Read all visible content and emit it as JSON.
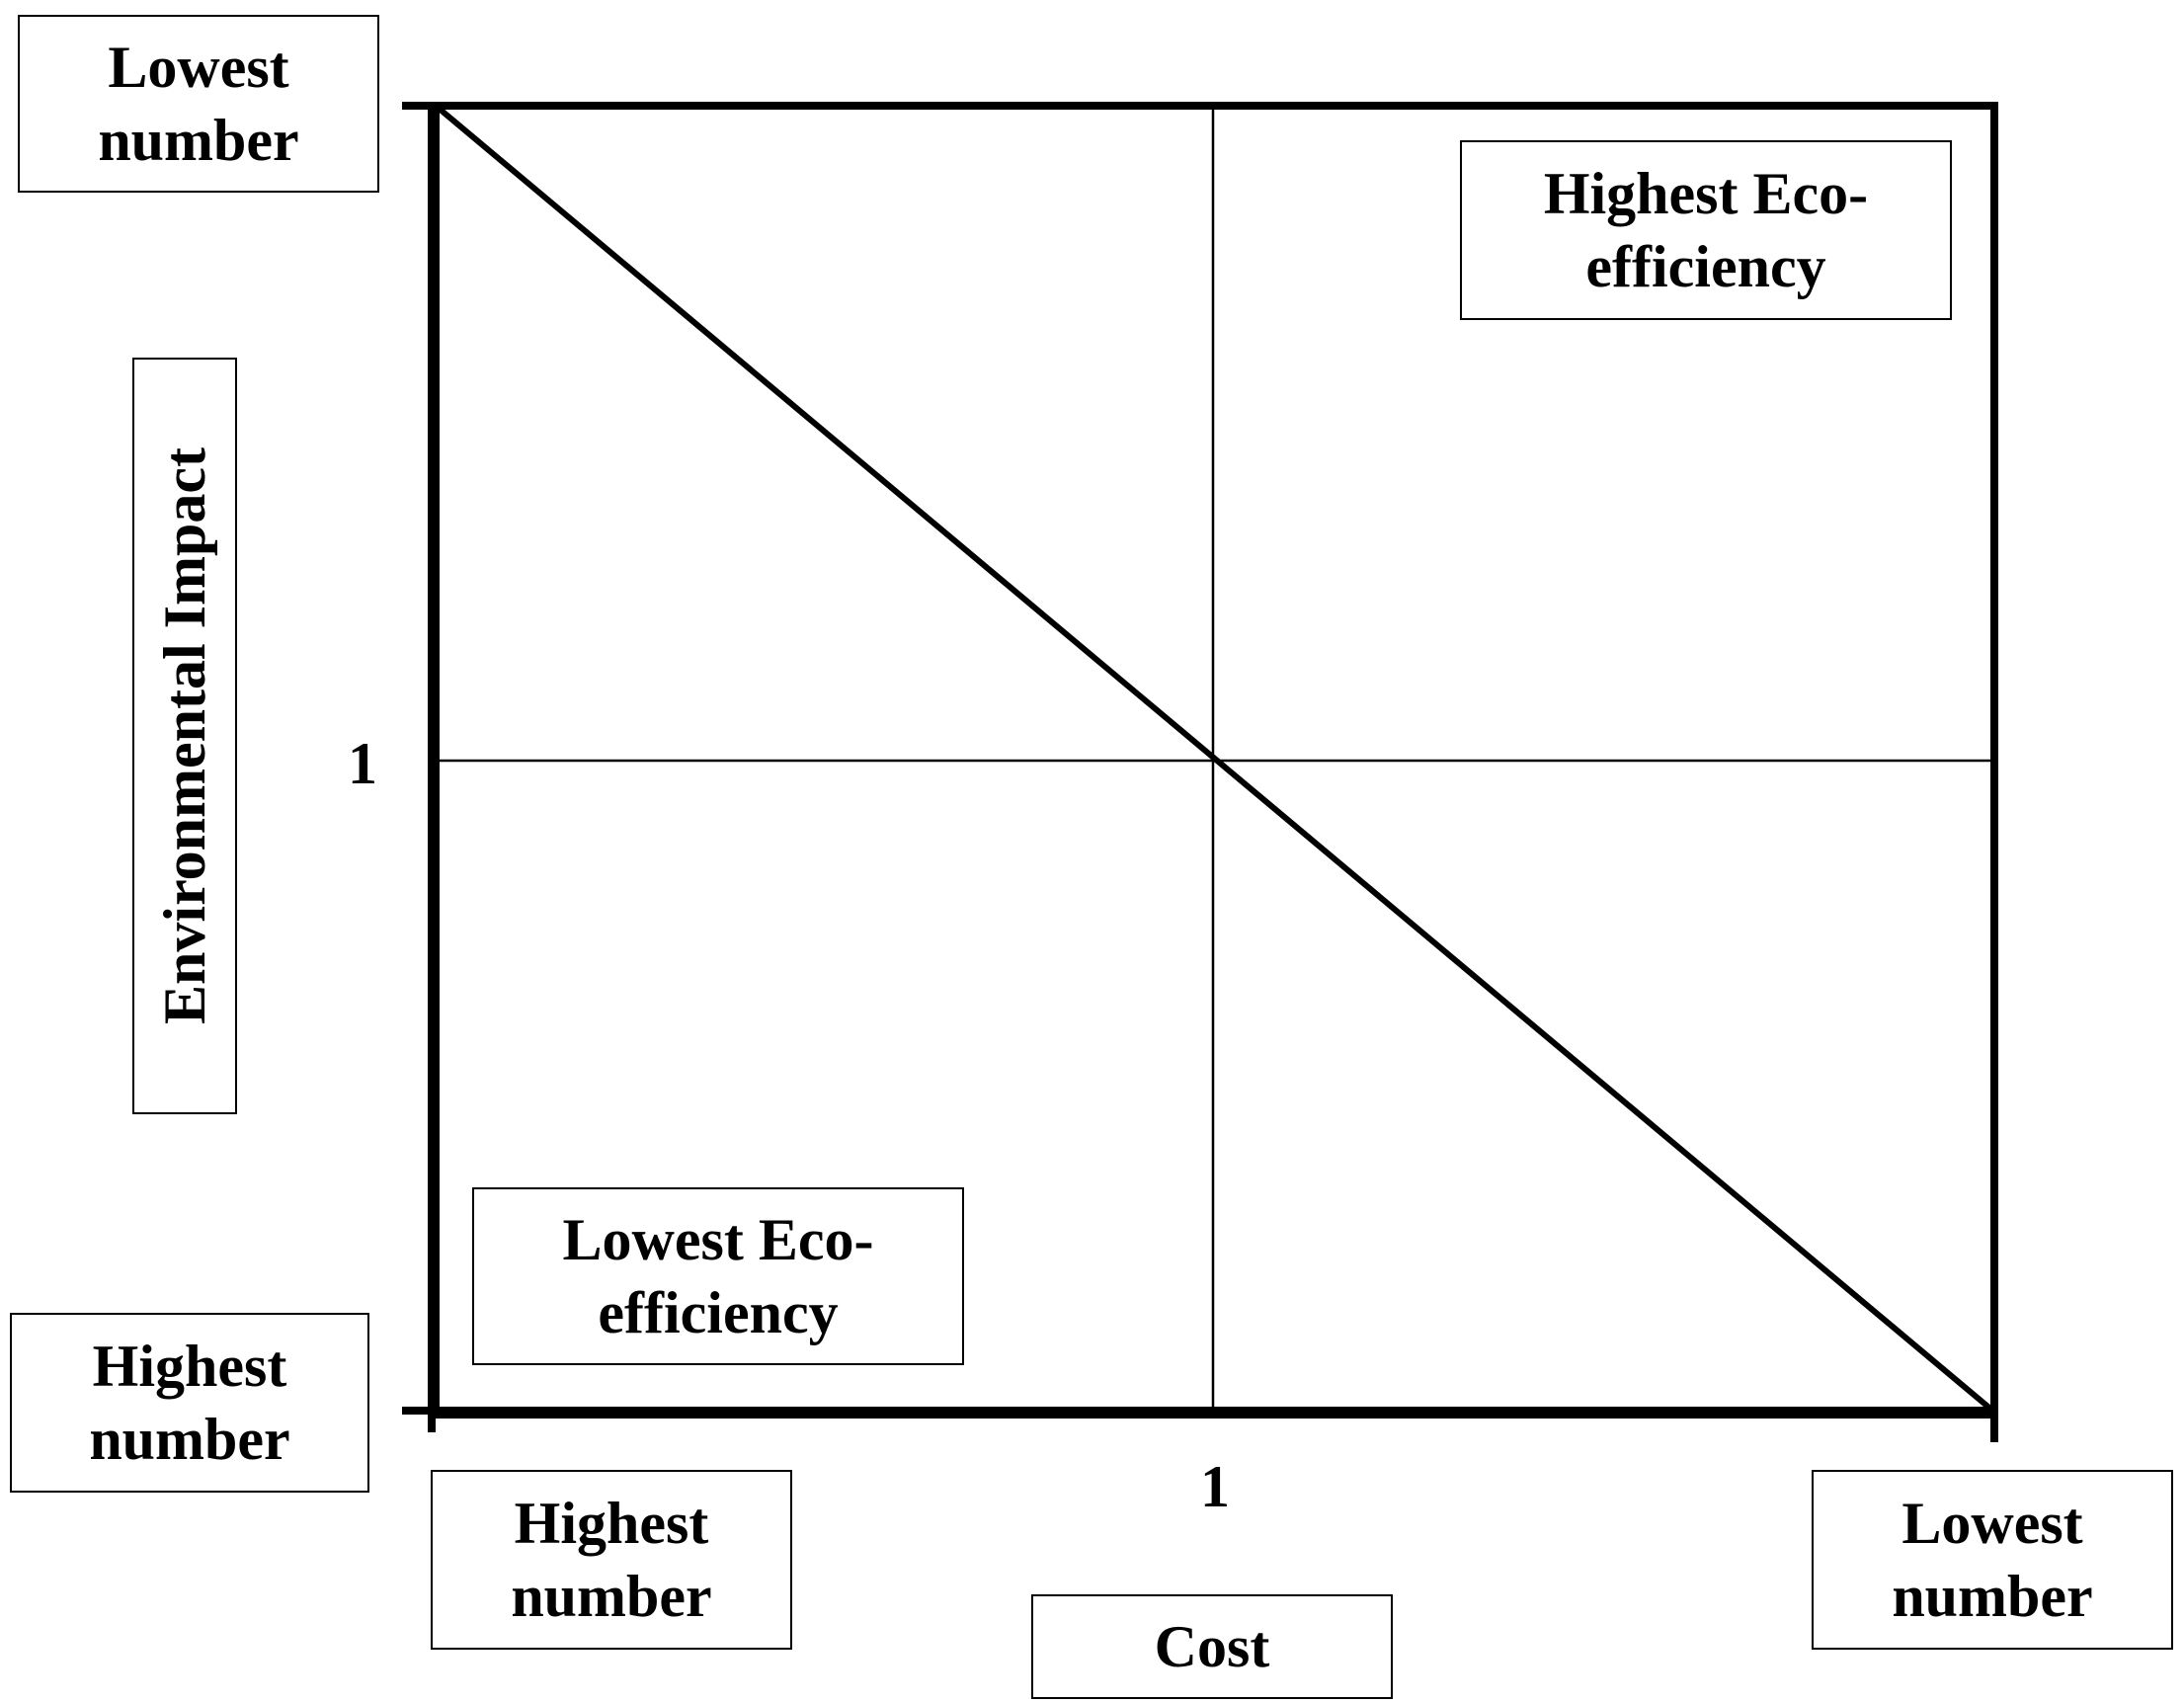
{
  "y_axis": {
    "title": "Environmental Impact",
    "top_label": [
      "Lowest",
      "number"
    ],
    "bottom_label": [
      "Highest",
      "number"
    ],
    "mid_tick": "1"
  },
  "x_axis": {
    "title": "Cost",
    "left_label": [
      "Highest",
      "number"
    ],
    "right_label": [
      "Lowest",
      "number"
    ],
    "mid_tick": "1"
  },
  "quadrant_labels": {
    "top_right": [
      "Highest Eco-",
      "efficiency"
    ],
    "bottom_left": [
      "Lowest Eco-",
      "efficiency"
    ]
  },
  "colors": {
    "line": "#000000",
    "background": "#ffffff"
  }
}
